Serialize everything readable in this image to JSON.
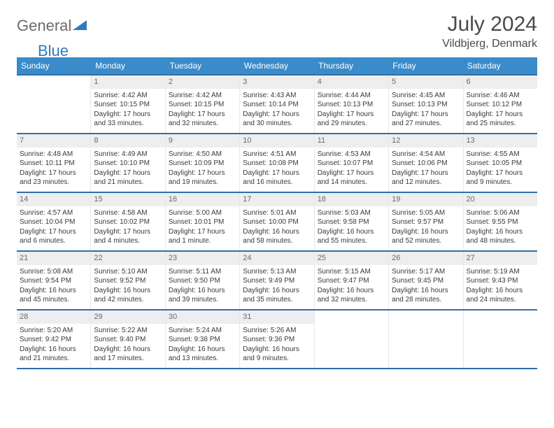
{
  "logo": {
    "general": "General",
    "blue": "Blue"
  },
  "title": "July 2024",
  "location": "Vildbjerg, Denmark",
  "colors": {
    "header_bg": "#3a8bc9",
    "line": "#2f6ea8",
    "daynum_bg": "#eeeeee",
    "text": "#3a3a3a",
    "title_text": "#4a4a4a",
    "logo_gray": "#6b6b6b",
    "logo_blue": "#2f7bbf"
  },
  "weekdays": [
    "Sunday",
    "Monday",
    "Tuesday",
    "Wednesday",
    "Thursday",
    "Friday",
    "Saturday"
  ],
  "start_offset": 1,
  "days": [
    {
      "n": 1,
      "sunrise": "4:42 AM",
      "sunset": "10:15 PM",
      "daylight": "17 hours and 33 minutes."
    },
    {
      "n": 2,
      "sunrise": "4:42 AM",
      "sunset": "10:15 PM",
      "daylight": "17 hours and 32 minutes."
    },
    {
      "n": 3,
      "sunrise": "4:43 AM",
      "sunset": "10:14 PM",
      "daylight": "17 hours and 30 minutes."
    },
    {
      "n": 4,
      "sunrise": "4:44 AM",
      "sunset": "10:13 PM",
      "daylight": "17 hours and 29 minutes."
    },
    {
      "n": 5,
      "sunrise": "4:45 AM",
      "sunset": "10:13 PM",
      "daylight": "17 hours and 27 minutes."
    },
    {
      "n": 6,
      "sunrise": "4:46 AM",
      "sunset": "10:12 PM",
      "daylight": "17 hours and 25 minutes."
    },
    {
      "n": 7,
      "sunrise": "4:48 AM",
      "sunset": "10:11 PM",
      "daylight": "17 hours and 23 minutes."
    },
    {
      "n": 8,
      "sunrise": "4:49 AM",
      "sunset": "10:10 PM",
      "daylight": "17 hours and 21 minutes."
    },
    {
      "n": 9,
      "sunrise": "4:50 AM",
      "sunset": "10:09 PM",
      "daylight": "17 hours and 19 minutes."
    },
    {
      "n": 10,
      "sunrise": "4:51 AM",
      "sunset": "10:08 PM",
      "daylight": "17 hours and 16 minutes."
    },
    {
      "n": 11,
      "sunrise": "4:53 AM",
      "sunset": "10:07 PM",
      "daylight": "17 hours and 14 minutes."
    },
    {
      "n": 12,
      "sunrise": "4:54 AM",
      "sunset": "10:06 PM",
      "daylight": "17 hours and 12 minutes."
    },
    {
      "n": 13,
      "sunrise": "4:55 AM",
      "sunset": "10:05 PM",
      "daylight": "17 hours and 9 minutes."
    },
    {
      "n": 14,
      "sunrise": "4:57 AM",
      "sunset": "10:04 PM",
      "daylight": "17 hours and 6 minutes."
    },
    {
      "n": 15,
      "sunrise": "4:58 AM",
      "sunset": "10:02 PM",
      "daylight": "17 hours and 4 minutes."
    },
    {
      "n": 16,
      "sunrise": "5:00 AM",
      "sunset": "10:01 PM",
      "daylight": "17 hours and 1 minute."
    },
    {
      "n": 17,
      "sunrise": "5:01 AM",
      "sunset": "10:00 PM",
      "daylight": "16 hours and 58 minutes."
    },
    {
      "n": 18,
      "sunrise": "5:03 AM",
      "sunset": "9:58 PM",
      "daylight": "16 hours and 55 minutes."
    },
    {
      "n": 19,
      "sunrise": "5:05 AM",
      "sunset": "9:57 PM",
      "daylight": "16 hours and 52 minutes."
    },
    {
      "n": 20,
      "sunrise": "5:06 AM",
      "sunset": "9:55 PM",
      "daylight": "16 hours and 48 minutes."
    },
    {
      "n": 21,
      "sunrise": "5:08 AM",
      "sunset": "9:54 PM",
      "daylight": "16 hours and 45 minutes."
    },
    {
      "n": 22,
      "sunrise": "5:10 AM",
      "sunset": "9:52 PM",
      "daylight": "16 hours and 42 minutes."
    },
    {
      "n": 23,
      "sunrise": "5:11 AM",
      "sunset": "9:50 PM",
      "daylight": "16 hours and 39 minutes."
    },
    {
      "n": 24,
      "sunrise": "5:13 AM",
      "sunset": "9:49 PM",
      "daylight": "16 hours and 35 minutes."
    },
    {
      "n": 25,
      "sunrise": "5:15 AM",
      "sunset": "9:47 PM",
      "daylight": "16 hours and 32 minutes."
    },
    {
      "n": 26,
      "sunrise": "5:17 AM",
      "sunset": "9:45 PM",
      "daylight": "16 hours and 28 minutes."
    },
    {
      "n": 27,
      "sunrise": "5:19 AM",
      "sunset": "9:43 PM",
      "daylight": "16 hours and 24 minutes."
    },
    {
      "n": 28,
      "sunrise": "5:20 AM",
      "sunset": "9:42 PM",
      "daylight": "16 hours and 21 minutes."
    },
    {
      "n": 29,
      "sunrise": "5:22 AM",
      "sunset": "9:40 PM",
      "daylight": "16 hours and 17 minutes."
    },
    {
      "n": 30,
      "sunrise": "5:24 AM",
      "sunset": "9:38 PM",
      "daylight": "16 hours and 13 minutes."
    },
    {
      "n": 31,
      "sunrise": "5:26 AM",
      "sunset": "9:36 PM",
      "daylight": "16 hours and 9 minutes."
    }
  ],
  "labels": {
    "sunrise": "Sunrise:",
    "sunset": "Sunset:",
    "daylight": "Daylight:"
  }
}
